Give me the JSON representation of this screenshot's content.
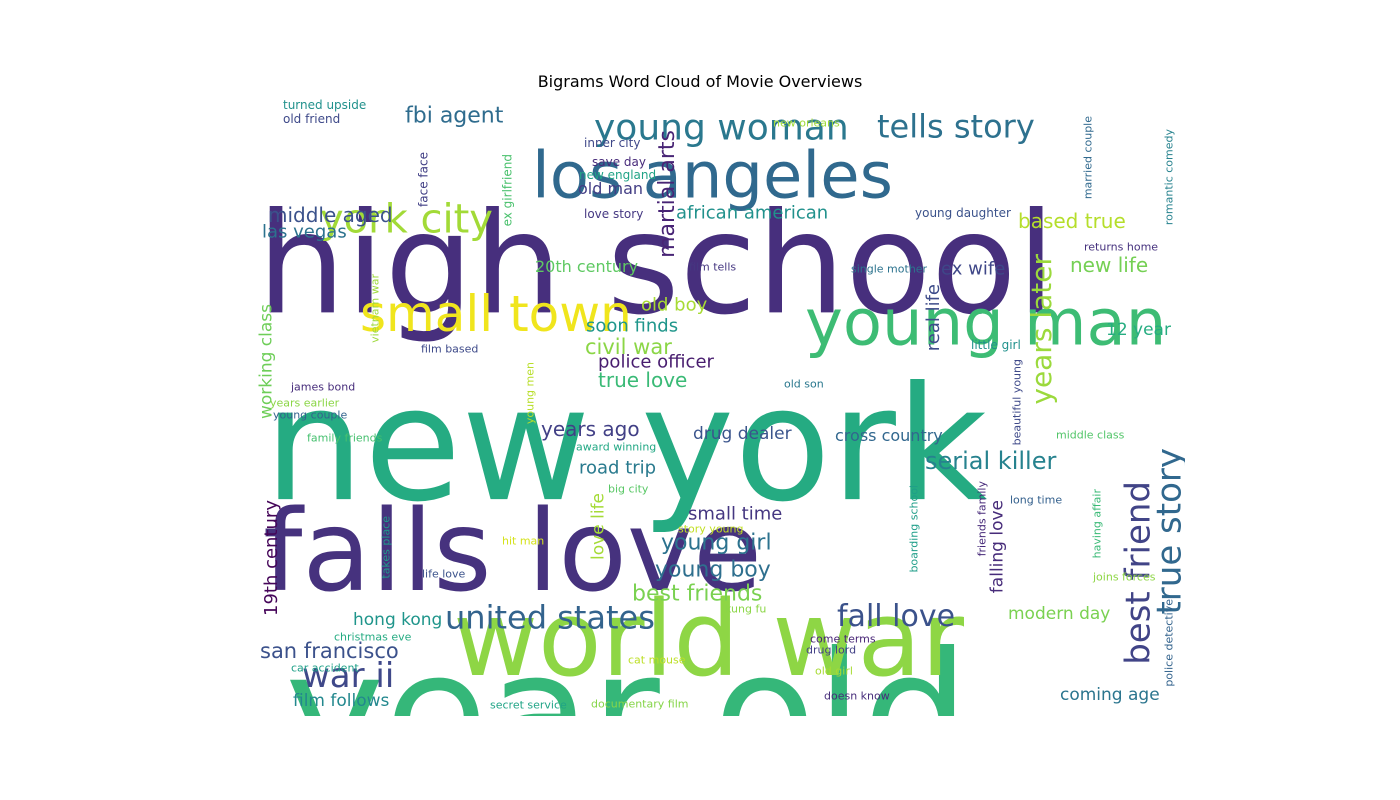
{
  "chart_data": {
    "type": "wordcloud",
    "title": "Bigrams Word Cloud of Movie Overviews",
    "words": [
      {
        "text": "high school",
        "color": "#472f7d"
      },
      {
        "text": "new york",
        "color": "#25ab82"
      },
      {
        "text": "year old",
        "color": "#35b779"
      },
      {
        "text": "falls love",
        "color": "#46327e"
      },
      {
        "text": "world war",
        "color": "#8ed645"
      },
      {
        "text": "young man",
        "color": "#3dbc74"
      },
      {
        "text": "los angeles",
        "color": "#30698e"
      },
      {
        "text": "small town",
        "color": "#f0e51d"
      },
      {
        "text": "york city",
        "color": "#a2da37"
      },
      {
        "text": "young woman",
        "color": "#2a788e"
      },
      {
        "text": "tells story",
        "color": "#2d718e"
      },
      {
        "text": "best friend",
        "color": "#414487"
      },
      {
        "text": "true story",
        "color": "#31688e"
      },
      {
        "text": "years later",
        "color": "#9bd93c"
      },
      {
        "text": "united states",
        "color": "#33638d"
      },
      {
        "text": "fall love",
        "color": "#3b528b"
      },
      {
        "text": "war ii",
        "color": "#3f4889"
      },
      {
        "text": "serial killer",
        "color": "#26828e"
      },
      {
        "text": "fbi agent",
        "color": "#2f6c8e"
      },
      {
        "text": "martial arts",
        "color": "#482475"
      },
      {
        "text": "middle aged",
        "color": "#3b528b"
      },
      {
        "text": "las vegas",
        "color": "#2c728e"
      },
      {
        "text": "african american",
        "color": "#21918c"
      },
      {
        "text": "based true",
        "color": "#b5de2b"
      },
      {
        "text": "20th century",
        "color": "#5ec962"
      },
      {
        "text": "ex wife",
        "color": "#3f4788"
      },
      {
        "text": "new life",
        "color": "#75d054"
      },
      {
        "text": "real life",
        "color": "#3e4c8a"
      },
      {
        "text": "working class",
        "color": "#6ece58"
      },
      {
        "text": "old boy",
        "color": "#a8db34"
      },
      {
        "text": "soon finds",
        "color": "#1f968b"
      },
      {
        "text": "civil war",
        "color": "#8bd646"
      },
      {
        "text": "police officer",
        "color": "#481d6f"
      },
      {
        "text": "true love",
        "color": "#3aba76"
      },
      {
        "text": "12 year",
        "color": "#26ad81"
      },
      {
        "text": "years ago",
        "color": "#424086"
      },
      {
        "text": "drug dealer",
        "color": "#3a548c"
      },
      {
        "text": "cross country",
        "color": "#31678e"
      },
      {
        "text": "road trip",
        "color": "#297a8e"
      },
      {
        "text": "19th century",
        "color": "#450559"
      },
      {
        "text": "small time",
        "color": "#453781"
      },
      {
        "text": "young girl",
        "color": "#2c728e"
      },
      {
        "text": "young boy",
        "color": "#2e6f8e"
      },
      {
        "text": "best friends",
        "color": "#7ad151"
      },
      {
        "text": "love life",
        "color": "#a5db36"
      },
      {
        "text": "falling love",
        "color": "#472c7a"
      },
      {
        "text": "hong kong",
        "color": "#1f958b"
      },
      {
        "text": "san francisco",
        "color": "#3b518b"
      },
      {
        "text": "modern day",
        "color": "#7ad151"
      },
      {
        "text": "coming age",
        "color": "#2b758e"
      },
      {
        "text": "film follows",
        "color": "#23888e"
      },
      {
        "text": "turned upside",
        "color": "#21918c"
      },
      {
        "text": "old friend",
        "color": "#3e4989"
      },
      {
        "text": "inner city",
        "color": "#3f4889"
      },
      {
        "text": "save day",
        "color": "#472a7a"
      },
      {
        "text": "new england",
        "color": "#20a386"
      },
      {
        "text": "old man",
        "color": "#433e85"
      },
      {
        "text": "love story",
        "color": "#453882"
      },
      {
        "text": "face face",
        "color": "#424086"
      },
      {
        "text": "ex girlfriend",
        "color": "#4ac16d"
      },
      {
        "text": "new orleans",
        "color": "#a0da39"
      },
      {
        "text": "married couple",
        "color": "#30698e"
      },
      {
        "text": "romantic comedy",
        "color": "#26828e"
      },
      {
        "text": "young daughter",
        "color": "#3b528b"
      },
      {
        "text": "returns home",
        "color": "#46327e"
      },
      {
        "text": "single mother",
        "color": "#2c738e"
      },
      {
        "text": "film tells",
        "color": "#453781"
      },
      {
        "text": "vietnam war",
        "color": "#9dd93b"
      },
      {
        "text": "film based",
        "color": "#3e4a89"
      },
      {
        "text": "james bond",
        "color": "#472d7b"
      },
      {
        "text": "years earlier",
        "color": "#8bd646"
      },
      {
        "text": "young couple",
        "color": "#33638d"
      },
      {
        "text": "young men",
        "color": "#b8de29"
      },
      {
        "text": "old son",
        "color": "#2a788e"
      },
      {
        "text": "little girl",
        "color": "#21918c"
      },
      {
        "text": "beautiful young",
        "color": "#3e4989"
      },
      {
        "text": "middle class",
        "color": "#52c569"
      },
      {
        "text": "family friends",
        "color": "#46c06f"
      },
      {
        "text": "award winning",
        "color": "#22a884"
      },
      {
        "text": "big city",
        "color": "#58c765"
      },
      {
        "text": "long time",
        "color": "#34608d"
      },
      {
        "text": "having affair",
        "color": "#3aba76"
      },
      {
        "text": "friends family",
        "color": "#472a7a"
      },
      {
        "text": "boarding school",
        "color": "#1f9e89"
      },
      {
        "text": "story young",
        "color": "#c2df23"
      },
      {
        "text": "hit man",
        "color": "#d5e21a"
      },
      {
        "text": "takes place",
        "color": "#1f9a8a"
      },
      {
        "text": "life love",
        "color": "#3b528b"
      },
      {
        "text": "kung fu",
        "color": "#8bd646"
      },
      {
        "text": "joins forces",
        "color": "#8ed645"
      },
      {
        "text": "christmas eve",
        "color": "#25ab82"
      },
      {
        "text": "come terms",
        "color": "#482576"
      },
      {
        "text": "drug lord",
        "color": "#424086"
      },
      {
        "text": "car accident",
        "color": "#1fa088"
      },
      {
        "text": "cat mouse",
        "color": "#bddf26"
      },
      {
        "text": "old girl",
        "color": "#a8db34"
      },
      {
        "text": "police detective",
        "color": "#33638d"
      },
      {
        "text": "secret service",
        "color": "#20a486"
      },
      {
        "text": "documentary film",
        "color": "#86d549"
      },
      {
        "text": "doesn know",
        "color": "#472d7b"
      }
    ]
  }
}
